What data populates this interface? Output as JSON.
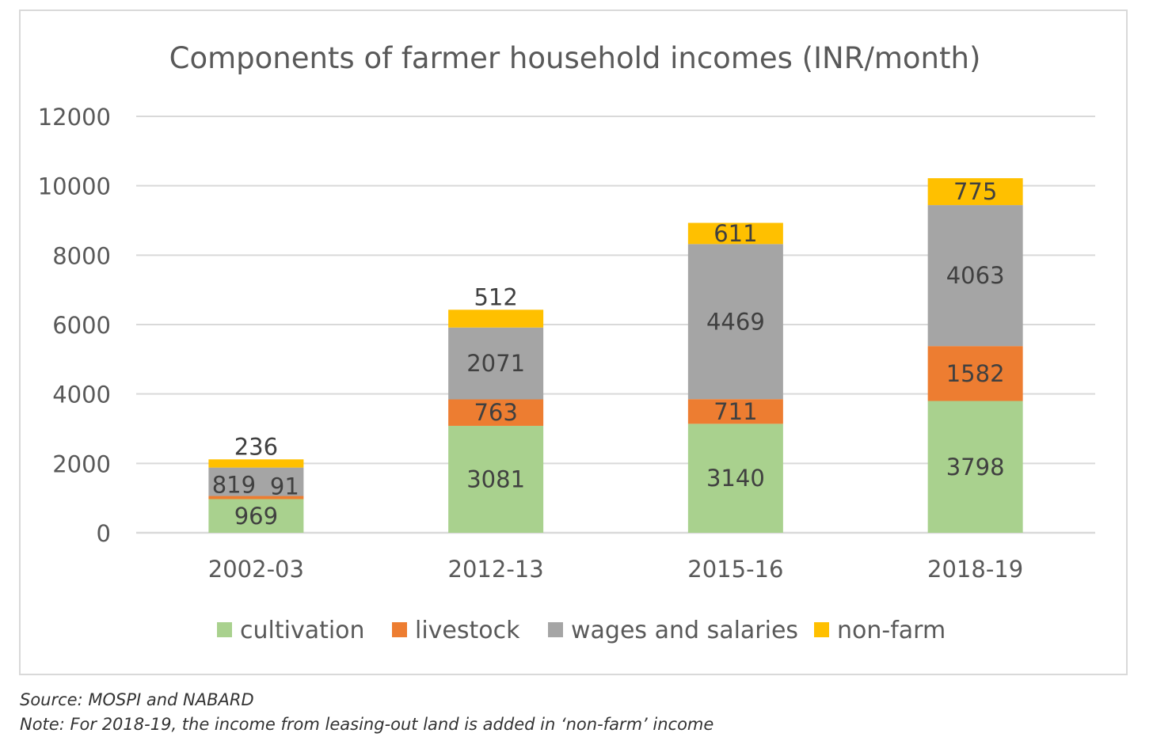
{
  "chart_data": {
    "type": "bar",
    "stacked": true,
    "title": "Components of farmer household incomes (INR/month)",
    "categories": [
      "2002-03",
      "2012-13",
      "2015-16",
      "2018-19"
    ],
    "series": [
      {
        "name": "cultivation",
        "color": "#a9d18e",
        "values": [
          969,
          3081,
          3140,
          3798
        ]
      },
      {
        "name": "livestock",
        "color": "#ed7d31",
        "values": [
          91,
          763,
          711,
          1582
        ]
      },
      {
        "name": "wages and salaries",
        "color": "#a5a5a5",
        "values": [
          819,
          2071,
          4469,
          4063
        ]
      },
      {
        "name": "non-farm",
        "color": "#ffc000",
        "values": [
          236,
          512,
          611,
          775
        ]
      }
    ],
    "ylim": [
      0,
      12000
    ],
    "yticks": [
      0,
      2000,
      4000,
      6000,
      8000,
      10000,
      12000
    ],
    "grid": true,
    "legend": "bottom"
  },
  "footnotes": {
    "source": "Source: MOSPI and NABARD",
    "note": "Note: For 2018-19, the income from leasing-out land is added in ‘non-farm’ income"
  }
}
